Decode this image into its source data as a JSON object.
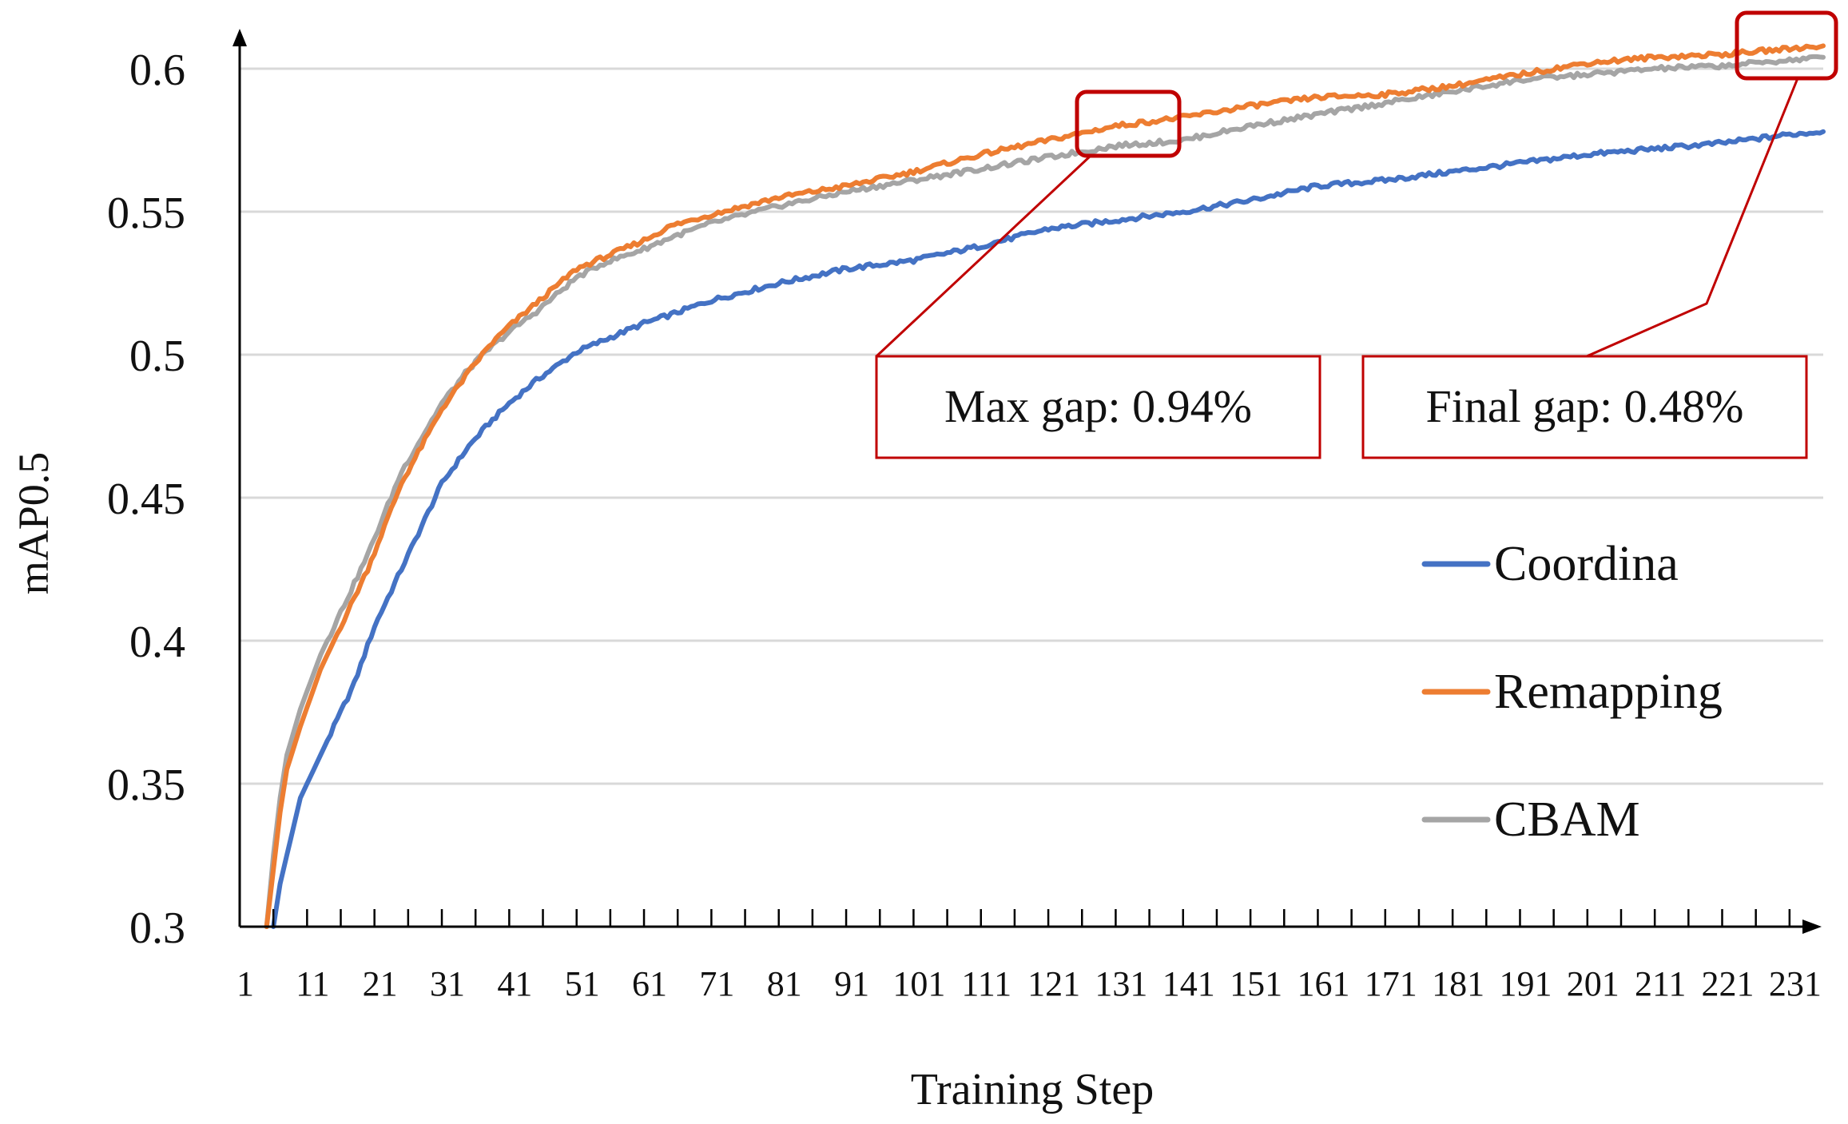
{
  "chart_data": {
    "type": "line",
    "title": "",
    "xlabel": "Training Step",
    "ylabel": "mAP0.5",
    "ylim": [
      0.3,
      0.6
    ],
    "y_ticks": [
      "0.3",
      "0.35",
      "0.4",
      "0.45",
      "0.5",
      "0.55",
      "0.6"
    ],
    "x_ticks": [
      "1",
      "11",
      "21",
      "31",
      "41",
      "51",
      "61",
      "71",
      "81",
      "91",
      "101",
      "111",
      "121",
      "131",
      "141",
      "151",
      "161",
      "171",
      "181",
      "191",
      "201",
      "211",
      "221",
      "231"
    ],
    "xlim": [
      1,
      236
    ],
    "grid": true,
    "legend_position": "right",
    "series": [
      {
        "name": "Coordina",
        "color": "#4472C4",
        "x": [
          6,
          7,
          8,
          10,
          12,
          15,
          18,
          21,
          25,
          28,
          31,
          35,
          38,
          41,
          45,
          48,
          51,
          55,
          61,
          65,
          71,
          81,
          91,
          101,
          111,
          121,
          131,
          141,
          151,
          161,
          171,
          181,
          191,
          201,
          211,
          221,
          231,
          236
        ],
        "y": [
          0.3,
          0.315,
          0.325,
          0.345,
          0.355,
          0.37,
          0.385,
          0.405,
          0.425,
          0.44,
          0.455,
          0.468,
          0.476,
          0.483,
          0.491,
          0.496,
          0.501,
          0.505,
          0.511,
          0.514,
          0.519,
          0.525,
          0.53,
          0.533,
          0.538,
          0.544,
          0.547,
          0.55,
          0.554,
          0.559,
          0.561,
          0.564,
          0.567,
          0.57,
          0.572,
          0.574,
          0.577,
          0.578
        ]
      },
      {
        "name": "Remapping",
        "color": "#ED7D31",
        "x": [
          5,
          6,
          7,
          8,
          10,
          13,
          16,
          20,
          25,
          28,
          31,
          35,
          38,
          41,
          45,
          48,
          51,
          55,
          61,
          65,
          71,
          81,
          91,
          101,
          111,
          121,
          131,
          141,
          151,
          161,
          171,
          181,
          191,
          201,
          211,
          221,
          231,
          236
        ],
        "y": [
          0.3,
          0.32,
          0.34,
          0.355,
          0.37,
          0.39,
          0.405,
          0.425,
          0.455,
          0.468,
          0.481,
          0.494,
          0.503,
          0.51,
          0.518,
          0.524,
          0.53,
          0.534,
          0.54,
          0.545,
          0.549,
          0.555,
          0.559,
          0.564,
          0.57,
          0.575,
          0.58,
          0.583,
          0.587,
          0.59,
          0.591,
          0.594,
          0.598,
          0.602,
          0.604,
          0.605,
          0.607,
          0.608
        ]
      },
      {
        "name": "CBAM",
        "color": "#A5A5A5",
        "x": [
          5,
          6,
          7,
          8,
          10,
          13,
          16,
          20,
          25,
          28,
          31,
          35,
          38,
          41,
          45,
          48,
          51,
          55,
          61,
          65,
          71,
          81,
          91,
          101,
          111,
          121,
          131,
          141,
          151,
          161,
          171,
          181,
          191,
          201,
          211,
          221,
          231,
          236
        ],
        "y": [
          0.3,
          0.325,
          0.345,
          0.36,
          0.376,
          0.395,
          0.41,
          0.43,
          0.459,
          0.471,
          0.483,
          0.495,
          0.502,
          0.508,
          0.515,
          0.521,
          0.527,
          0.532,
          0.537,
          0.541,
          0.546,
          0.552,
          0.557,
          0.561,
          0.565,
          0.569,
          0.573,
          0.575,
          0.58,
          0.584,
          0.588,
          0.592,
          0.596,
          0.598,
          0.6,
          0.601,
          0.603,
          0.604
        ]
      }
    ],
    "annotations": [
      {
        "text": "Max gap: 0.94%",
        "target_x": [
          130,
          140
        ],
        "target_y": [
          0.569,
          0.58
        ]
      },
      {
        "text": "Final gap: 0.48%",
        "target_x": [
          227,
          236
        ],
        "target_y": [
          0.603,
          0.61
        ]
      }
    ],
    "annotation_color": "#C00000"
  }
}
